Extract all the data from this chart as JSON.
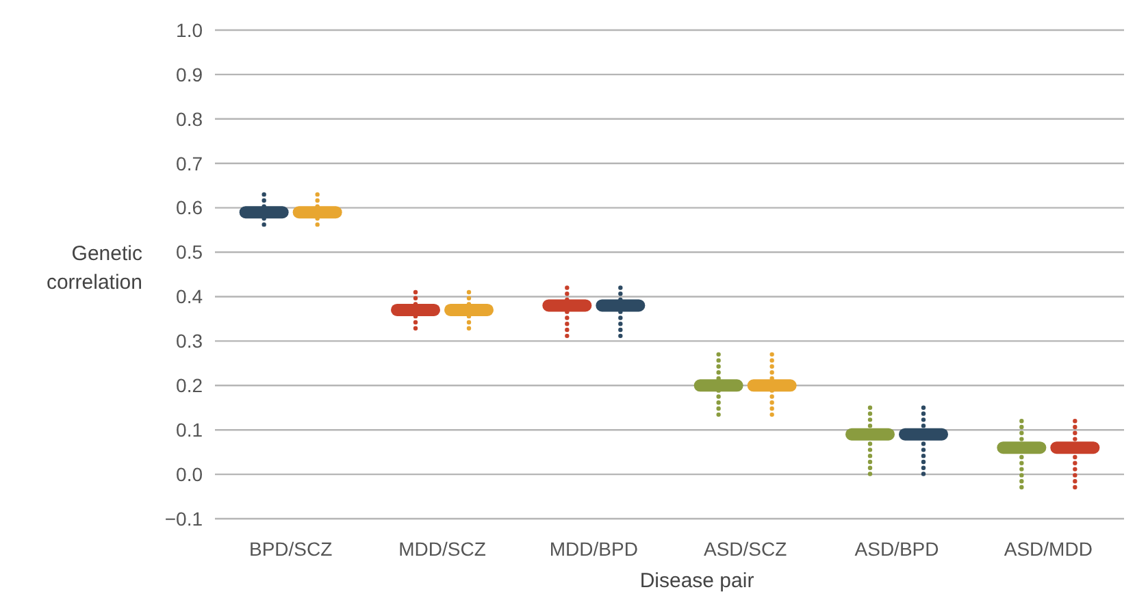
{
  "chart_data": {
    "type": "box",
    "xlabel": "Disease pair",
    "ylabel": "Genetic correlation",
    "categories": [
      "BPD/SCZ",
      "MDD/SCZ",
      "MDD/BPD",
      "ASD/SCZ",
      "ASD/BPD",
      "ASD/MDD"
    ],
    "series": [
      {
        "colors": [
          "#2d4a63",
          "#c8402a",
          "#c8402a",
          "#8a9c3f",
          "#8a9c3f",
          "#8a9c3f"
        ],
        "boxes": [
          {
            "low": 0.55,
            "q1": 0.59,
            "median": 0.59,
            "q3": 0.59,
            "high": 0.63
          },
          {
            "low": 0.32,
            "q1": 0.37,
            "median": 0.37,
            "q3": 0.37,
            "high": 0.41
          },
          {
            "low": 0.31,
            "q1": 0.38,
            "median": 0.38,
            "q3": 0.38,
            "high": 0.42
          },
          {
            "low": 0.13,
            "q1": 0.2,
            "median": 0.2,
            "q3": 0.2,
            "high": 0.27
          },
          {
            "low": -0.01,
            "q1": 0.09,
            "median": 0.09,
            "q3": 0.09,
            "high": 0.15
          },
          {
            "low": -0.04,
            "q1": 0.06,
            "median": 0.06,
            "q3": 0.06,
            "high": 0.12
          }
        ]
      },
      {
        "colors": [
          "#e8a630",
          "#e8a630",
          "#2d4a63",
          "#e8a630",
          "#2d4a63",
          "#c8402a"
        ],
        "boxes": [
          {
            "low": 0.55,
            "q1": 0.59,
            "median": 0.59,
            "q3": 0.59,
            "high": 0.63
          },
          {
            "low": 0.32,
            "q1": 0.37,
            "median": 0.37,
            "q3": 0.37,
            "high": 0.41
          },
          {
            "low": 0.31,
            "q1": 0.38,
            "median": 0.38,
            "q3": 0.38,
            "high": 0.42
          },
          {
            "low": 0.13,
            "q1": 0.2,
            "median": 0.2,
            "q3": 0.2,
            "high": 0.27
          },
          {
            "low": -0.01,
            "q1": 0.09,
            "median": 0.09,
            "q3": 0.09,
            "high": 0.15
          },
          {
            "low": -0.04,
            "q1": 0.06,
            "median": 0.06,
            "q3": 0.06,
            "high": 0.12
          }
        ]
      }
    ],
    "ylim": [
      -0.1,
      1.0
    ],
    "yticks": [
      {
        "value": -0.1,
        "label": "−0.1"
      },
      {
        "value": 0,
        "label": "0.0"
      },
      0.1,
      0.2,
      0.3,
      0.4,
      0.5,
      0.6,
      0.7,
      0.8,
      0.9,
      {
        "value": 1,
        "label": "1.0"
      }
    ],
    "grid": "y"
  }
}
